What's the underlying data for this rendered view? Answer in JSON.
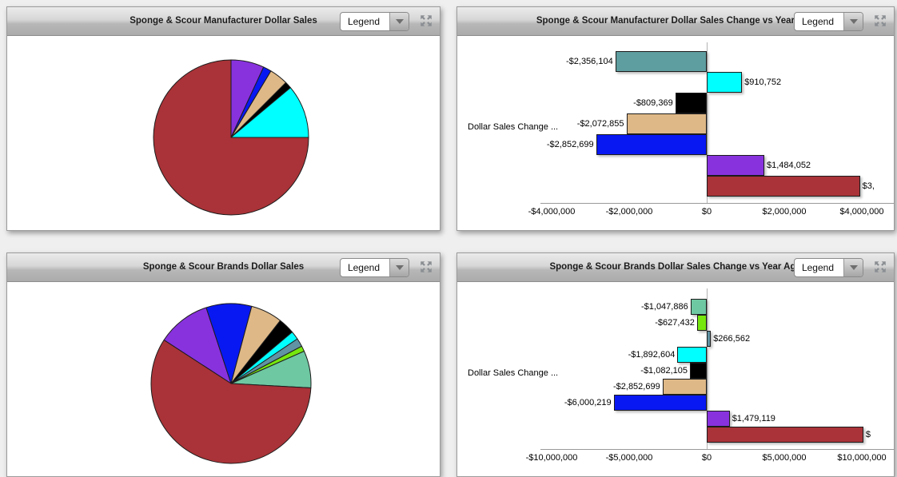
{
  "colors": {
    "dark_red": "#A93338",
    "purple": "#8832DE",
    "blue": "#0818F2",
    "tan": "#DEB887",
    "black": "#000000",
    "cyan": "#00FFFF",
    "teal": "#5F9EA0",
    "steel_teal": "#6093A3",
    "chartreuse": "#76E70D",
    "aquamarine": "#6EC8A2",
    "header_text": "#1B1B1B",
    "axis_line": "#9A9A9A",
    "page_background": "#EFEFEF"
  },
  "panels": [
    {
      "title": "Sponge & Scour Manufacturer Dollar Sales",
      "legend_label": "Legend"
    },
    {
      "title": "Sponge & Scour Manufacturer Dollar Sales Change vs Year Ago",
      "legend_label": "Legend"
    },
    {
      "title": "Sponge & Scour Brands Dollar Sales",
      "legend_label": "Legend"
    },
    {
      "title": "Sponge & Scour Brands Dollar Sales Change vs Year Ago",
      "legend_label": "Legend"
    }
  ],
  "chart_data": [
    {
      "type": "pie",
      "title": "Sponge & Scour Manufacturer Dollar Sales",
      "legend_position": "collapsed-dropdown",
      "start_deg": 0,
      "slices": [
        {
          "name": "purple",
          "color_key": "purple",
          "pct": 6.9
        },
        {
          "name": "blue",
          "color_key": "blue",
          "pct": 1.7
        },
        {
          "name": "tan",
          "color_key": "tan",
          "pct": 3.9
        },
        {
          "name": "black",
          "color_key": "black",
          "pct": 1.4
        },
        {
          "name": "cyan",
          "color_key": "cyan",
          "pct": 11.1
        },
        {
          "name": "dark-red",
          "color_key": "dark_red",
          "pct": 75.0
        }
      ]
    },
    {
      "type": "bar",
      "orientation": "horizontal",
      "title": "Sponge & Scour Manufacturer Dollar Sales Change vs Year Ago",
      "xlabel": "",
      "ylabel": "Dollar Sales Change ...",
      "xlim": [
        -4000000,
        4000000
      ],
      "grid": false,
      "ticks": [
        {
          "value": -4000000,
          "label": "-$4,000,000"
        },
        {
          "value": -2000000,
          "label": "-$2,000,000"
        },
        {
          "value": 0,
          "label": "$0"
        },
        {
          "value": 2000000,
          "label": "$2,000,000"
        },
        {
          "value": 4000000,
          "label": "$4,000,000"
        }
      ],
      "bars": [
        {
          "name": "teal",
          "color_key": "teal",
          "value": -2356104,
          "label": "-$2,356,104"
        },
        {
          "name": "cyan",
          "color_key": "cyan",
          "value": 910752,
          "label": "$910,752"
        },
        {
          "name": "black",
          "color_key": "black",
          "value": -809369,
          "label": "-$809,369"
        },
        {
          "name": "tan",
          "color_key": "tan",
          "value": -2072855,
          "label": "-$2,072,855"
        },
        {
          "name": "blue",
          "color_key": "blue",
          "value": -2852699,
          "label": "-$2,852,699"
        },
        {
          "name": "purple",
          "color_key": "purple",
          "value": 1484052,
          "label": "$1,484,052"
        },
        {
          "name": "dark-red",
          "color_key": "dark_red",
          "value": 3950000,
          "label": "$3,"
        }
      ]
    },
    {
      "type": "pie",
      "title": "Sponge & Scour Brands Dollar Sales",
      "legend_position": "collapsed-dropdown",
      "start_deg": -57,
      "slices": [
        {
          "name": "purple",
          "color_key": "purple",
          "pct": 10.8
        },
        {
          "name": "blue",
          "color_key": "blue",
          "pct": 9.2
        },
        {
          "name": "tan",
          "color_key": "tan",
          "pct": 6.4
        },
        {
          "name": "black",
          "color_key": "black",
          "pct": 3.3
        },
        {
          "name": "cyan",
          "color_key": "cyan",
          "pct": 1.7
        },
        {
          "name": "steel-teal",
          "color_key": "steel_teal",
          "pct": 1.7
        },
        {
          "name": "chartreuse",
          "color_key": "chartreuse",
          "pct": 1.1
        },
        {
          "name": "aquamarine",
          "color_key": "aquamarine",
          "pct": 7.5
        },
        {
          "name": "dark-red",
          "color_key": "dark_red",
          "pct": 58.3
        }
      ]
    },
    {
      "type": "bar",
      "orientation": "horizontal",
      "title": "Sponge & Scour Brands Dollar Sales Change vs Year Ago",
      "xlabel": "",
      "ylabel": "Dollar Sales Change ...",
      "xlim": [
        -10000000,
        10000000
      ],
      "grid": false,
      "ticks": [
        {
          "value": -10000000,
          "label": "-$10,000,000"
        },
        {
          "value": -5000000,
          "label": "-$5,000,000"
        },
        {
          "value": 0,
          "label": "$0"
        },
        {
          "value": 5000000,
          "label": "$5,000,000"
        },
        {
          "value": 10000000,
          "label": "$10,000,000"
        }
      ],
      "bars": [
        {
          "name": "aquamarine",
          "color_key": "aquamarine",
          "value": -1047886,
          "label": "-$1,047,886"
        },
        {
          "name": "chartreuse",
          "color_key": "chartreuse",
          "value": -627432,
          "label": "-$627,432"
        },
        {
          "name": "steel-teal",
          "color_key": "steel_teal",
          "value": 266562,
          "label": "$266,562"
        },
        {
          "name": "cyan",
          "color_key": "cyan",
          "value": -1892604,
          "label": "-$1,892,604"
        },
        {
          "name": "black",
          "color_key": "black",
          "value": -1082105,
          "label": "-$1,082,105"
        },
        {
          "name": "tan",
          "color_key": "tan",
          "value": -2852699,
          "label": "-$2,852,699"
        },
        {
          "name": "blue",
          "color_key": "blue",
          "value": -6000219,
          "label": "-$6,000,219"
        },
        {
          "name": "purple",
          "color_key": "purple",
          "value": 1479119,
          "label": "$1,479,119"
        },
        {
          "name": "dark-red",
          "color_key": "dark_red",
          "value": 10100000,
          "label": "$"
        }
      ]
    }
  ]
}
